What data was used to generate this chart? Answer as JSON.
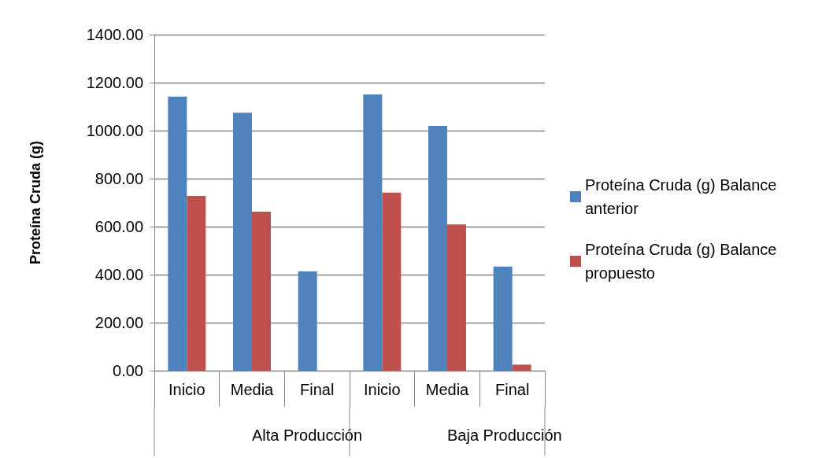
{
  "chart_data": {
    "type": "bar",
    "ylabel": "Proteína Cruda (g)",
    "categories": [
      "Inicio",
      "Media",
      "Final",
      "Inicio",
      "Media",
      "Final"
    ],
    "series": [
      {
        "name": "Proteína Cruda (g) Balance anterior",
        "color": "#4f81bd",
        "values": [
          1142,
          1075,
          414,
          1151,
          1020,
          434
        ]
      },
      {
        "name": "Proteína Cruda (g) Balance propuesto",
        "color": "#c0504d",
        "values": [
          728,
          662,
          0,
          742,
          609,
          25
        ]
      }
    ],
    "ylim": [
      0,
      1400
    ],
    "yticks": [
      {
        "value": 0,
        "label": "0.00"
      },
      {
        "value": 200,
        "label": "200.00"
      },
      {
        "value": 400,
        "label": "400.00"
      },
      {
        "value": 600,
        "label": "600.00"
      },
      {
        "value": 800,
        "label": "800.00"
      },
      {
        "value": 1000,
        "label": "1000.00"
      },
      {
        "value": 1200,
        "label": "1200.00"
      },
      {
        "value": 1400,
        "label": "1400.00"
      }
    ],
    "annotations": [
      "Alta Producción",
      "Baja Producción"
    ],
    "grid": "y",
    "legend": "right"
  }
}
